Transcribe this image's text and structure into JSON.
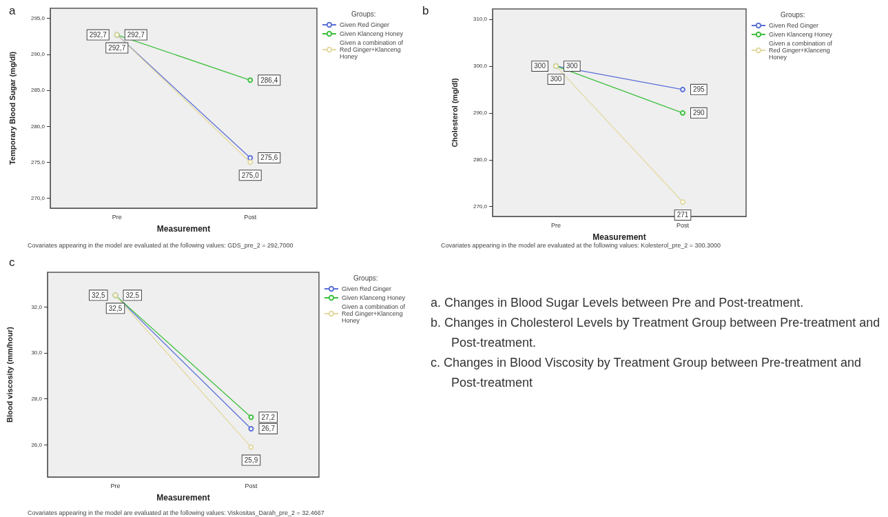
{
  "chart_data": [
    {
      "type": "line",
      "title": "a",
      "xlabel": "Measurement",
      "ylabel": "Temporary Blood Sugar (mg/dl)",
      "legend_title": "Groups:",
      "legend": "right",
      "marker": "circle",
      "grid": false,
      "categories": [
        "Pre",
        "Post"
      ],
      "ylim": [
        268.6,
        296.4
      ],
      "yticks": [
        {
          "value": 270,
          "label": "270,0"
        },
        {
          "value": 275,
          "label": "275,0"
        },
        {
          "value": 280,
          "label": "280,0"
        },
        {
          "value": 285,
          "label": "285,0"
        },
        {
          "value": 290,
          "label": "290,0"
        },
        {
          "value": 295,
          "label": "295,0"
        }
      ],
      "series": [
        {
          "name": "Given Red Ginger",
          "color": "#5a6fd8",
          "values": [
            292.7,
            275.6
          ],
          "value_labels": [
            "292,7",
            "275,6"
          ]
        },
        {
          "name": "Given Klanceng Honey",
          "color": "#3cbf3c",
          "values": [
            292.7,
            286.4
          ],
          "value_labels": [
            "292,7",
            "286,4"
          ]
        },
        {
          "name": "Given a combination of Red Ginger+Klanceng Honey",
          "color": "#e3d9a0",
          "values": [
            292.7,
            275.0
          ],
          "value_labels": [
            "292,7",
            "275,0"
          ]
        }
      ],
      "annotations": [
        "Covariates appearing in the model are evaluated at the following values: GDS_pre_2 = 292,7000"
      ]
    },
    {
      "type": "line",
      "title": "b",
      "xlabel": "Measurement",
      "ylabel": "Cholesterol (mg/dl)",
      "legend_title": "Groups:",
      "legend": "right",
      "marker": "circle",
      "grid": false,
      "categories": [
        "Pre",
        "Post"
      ],
      "ylim": [
        267.9,
        312.2
      ],
      "yticks": [
        {
          "value": 270,
          "label": "270,0"
        },
        {
          "value": 280,
          "label": "280,0"
        },
        {
          "value": 290,
          "label": "290,0"
        },
        {
          "value": 300,
          "label": "300,0"
        },
        {
          "value": 310,
          "label": "310,0"
        }
      ],
      "series": [
        {
          "name": "Given Red Ginger",
          "color": "#5a6fd8",
          "values": [
            300,
            295
          ],
          "value_labels": [
            "300",
            "295"
          ]
        },
        {
          "name": "Given Klanceng Honey",
          "color": "#3cbf3c",
          "values": [
            300,
            290
          ],
          "value_labels": [
            "300",
            "290"
          ]
        },
        {
          "name": "Given a combination of Red Ginger+Klanceng Honey",
          "color": "#e3d9a0",
          "values": [
            300,
            271
          ],
          "value_labels": [
            "300",
            "271"
          ]
        }
      ],
      "annotations": [
        "Covariates appearing in the model are evaluated at the following values: Kolesterol_pre_2 = 300.3000"
      ]
    },
    {
      "type": "line",
      "title": "c",
      "xlabel": "Measurement",
      "ylabel": "Blood viscosity (mm/hour)",
      "legend_title": "Groups:",
      "legend": "right",
      "marker": "circle",
      "grid": false,
      "categories": [
        "Pre",
        "Post"
      ],
      "ylim": [
        24.6,
        33.5
      ],
      "yticks": [
        {
          "value": 26,
          "label": "26,0"
        },
        {
          "value": 28,
          "label": "28,0"
        },
        {
          "value": 30,
          "label": "30,0"
        },
        {
          "value": 32,
          "label": "32,0"
        }
      ],
      "series": [
        {
          "name": "Given Red Ginger",
          "color": "#5a6fd8",
          "values": [
            32.5,
            26.7
          ],
          "value_labels": [
            "32,5",
            "26,7"
          ]
        },
        {
          "name": "Given Klanceng Honey",
          "color": "#3cbf3c",
          "values": [
            32.5,
            27.2
          ],
          "value_labels": [
            "32,5",
            "27,2"
          ]
        },
        {
          "name": "Given a combination of Red Ginger+Klanceng Honey",
          "color": "#e3d9a0",
          "values": [
            32.5,
            25.9
          ],
          "value_labels": [
            "32,5",
            "25,9"
          ]
        }
      ],
      "annotations": [
        "Covariates appearing in the model are evaluated at the following values: Viskositas_Darah_pre_2 = 32.4667"
      ]
    },
    {
      "type": "other",
      "annotations": [
        "a.  Changes in Blood Sugar Levels between Pre and Post-treatment.",
        "b.  Changes in Cholesterol Levels by Treatment Group between Pre-treatment and Post-treatment.",
        "c.  Changes in Blood Viscosity by Treatment Group between Pre-treatment and Post-treatment"
      ]
    }
  ]
}
